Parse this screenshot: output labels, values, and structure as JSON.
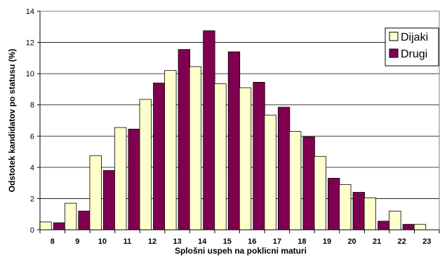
{
  "chart_data": {
    "type": "bar",
    "title": "",
    "xlabel": "Splošni uspeh na poklicni maturi",
    "ylabel": "Odstotek kandidatov po statusu (%)",
    "ylim": [
      0,
      14
    ],
    "y_ticks": [
      0,
      2,
      4,
      6,
      8,
      10,
      12,
      14
    ],
    "grid": true,
    "legend_position": "right",
    "categories": [
      "8",
      "9",
      "10",
      "11",
      "12",
      "13",
      "14",
      "15",
      "16",
      "17",
      "18",
      "19",
      "20",
      "21",
      "22",
      "23"
    ],
    "series": [
      {
        "name": "Dijaki",
        "color": "#FFFFCC",
        "values": [
          0.5,
          1.7,
          4.75,
          6.55,
          8.35,
          10.2,
          10.45,
          9.35,
          9.1,
          7.35,
          6.3,
          4.7,
          2.9,
          2.05,
          1.2,
          0.35
        ]
      },
      {
        "name": "Drugi",
        "color": "#800050",
        "values": [
          0.45,
          1.2,
          3.8,
          6.45,
          9.4,
          11.55,
          12.75,
          11.4,
          9.45,
          7.85,
          5.95,
          3.3,
          2.4,
          0.55,
          0.35,
          0
        ]
      }
    ]
  }
}
